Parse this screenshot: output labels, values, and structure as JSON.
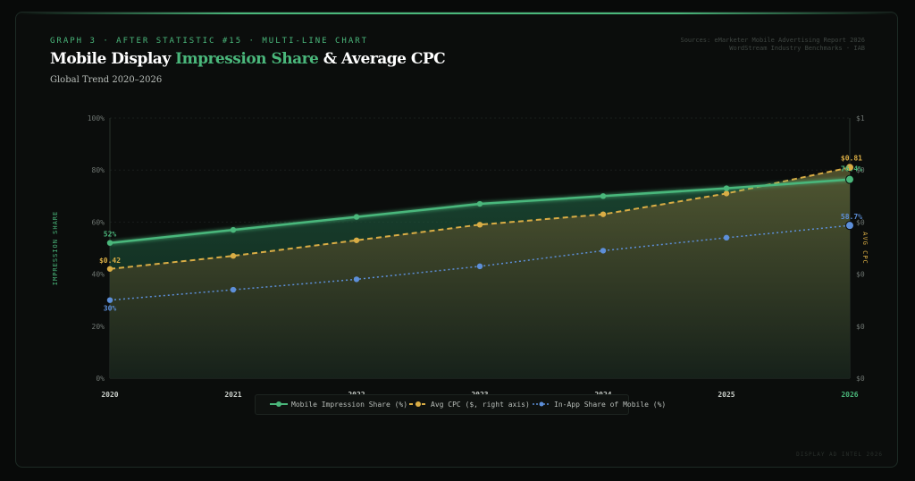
{
  "header": {
    "eyebrow": "GRAPH 3 · AFTER STATISTIC #15 · MULTI-LINE CHART",
    "title_part1": "Mobile Display ",
    "title_highlight": "Impression Share",
    "title_part2": " & Average CPC",
    "subtitle": "Global Trend 2020–2026",
    "sources_line1": "Sources: eMarketer Mobile Advertising Report 2026",
    "sources_line2": "WordStream Industry Benchmarks · IAB"
  },
  "footer": {
    "text": "DISPLAY AD INTEL 2026"
  },
  "colors": {
    "background": "#080a09",
    "card": "#0b0d0c",
    "impression_share": "#4ab77b",
    "avg_cpc": "#d9ad45",
    "in_app": "#5d8fd9",
    "axis_text": "#6e7571"
  },
  "chart_data": {
    "type": "line",
    "x": [
      "2020",
      "2021",
      "2022",
      "2023",
      "2024",
      "2025",
      "2026"
    ],
    "highlight_x": "2026",
    "y_axis_left": {
      "label": "IMPRESSION SHARE",
      "ticks": [
        "0%",
        "20%",
        "40%",
        "60%",
        "80%",
        "100%"
      ],
      "range": [
        0,
        100
      ]
    },
    "y_axis_right": {
      "label": "AVG CPC",
      "ticks": [
        "$0",
        "$0",
        "$0",
        "$0",
        "$0",
        "$1"
      ],
      "range": [
        0,
        1
      ]
    },
    "grid": true,
    "legend_position": "bottom-center",
    "series": [
      {
        "name": "Mobile Impression Share (%)",
        "axis": "left",
        "style": "solid",
        "values": [
          52,
          57,
          62,
          67,
          70,
          73,
          76.4
        ],
        "start_label": "52%",
        "end_label": "76.4%"
      },
      {
        "name": "Avg CPC ($, right axis)",
        "axis": "right",
        "style": "dashed",
        "values": [
          0.42,
          0.47,
          0.53,
          0.59,
          0.63,
          0.71,
          0.81
        ],
        "start_label": "$0.42",
        "end_label": "$0.81"
      },
      {
        "name": "In-App Share of Mobile (%)",
        "axis": "left",
        "style": "dotted",
        "values": [
          30,
          34,
          38,
          43,
          49,
          54,
          58.7
        ],
        "start_label": "30%",
        "end_label": "58.7%"
      }
    ]
  }
}
